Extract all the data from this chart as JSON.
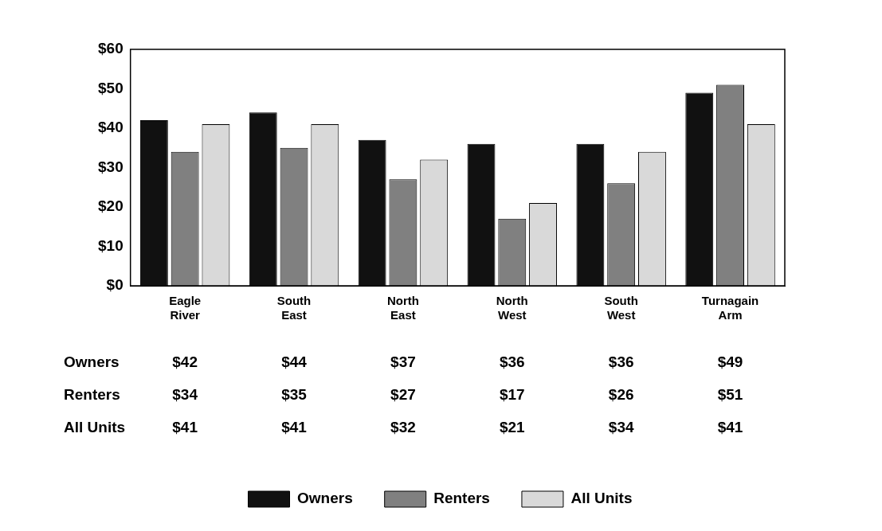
{
  "chart_data": {
    "type": "bar",
    "categories": [
      "Eagle River",
      "South East",
      "North East",
      "North West",
      "South West",
      "Turnagain Arm"
    ],
    "series": [
      {
        "name": "Owners",
        "color": "#111111",
        "values": [
          42,
          44,
          37,
          36,
          36,
          49
        ],
        "value_labels": [
          "$42",
          "$44",
          "$37",
          "$36",
          "$36",
          "$49"
        ]
      },
      {
        "name": "Renters",
        "color": "#808080",
        "values": [
          34,
          35,
          27,
          17,
          26,
          51
        ],
        "value_labels": [
          "$34",
          "$35",
          "$27",
          "$17",
          "$26",
          "$51"
        ]
      },
      {
        "name": "All Units",
        "color": "#d9d9d9",
        "values": [
          41,
          41,
          32,
          21,
          34,
          41
        ],
        "value_labels": [
          "$41",
          "$41",
          "$32",
          "$21",
          "$34",
          "$41"
        ]
      }
    ],
    "ylim": [
      0,
      60
    ],
    "yticks": [
      {
        "value": 0,
        "label": "$0"
      },
      {
        "value": 10,
        "label": "$10"
      },
      {
        "value": 20,
        "label": "$20"
      },
      {
        "value": 30,
        "label": "$30"
      },
      {
        "value": 40,
        "label": "$40"
      },
      {
        "value": 50,
        "label": "$50"
      },
      {
        "value": 60,
        "label": "$60"
      }
    ],
    "legend": "bottom"
  }
}
